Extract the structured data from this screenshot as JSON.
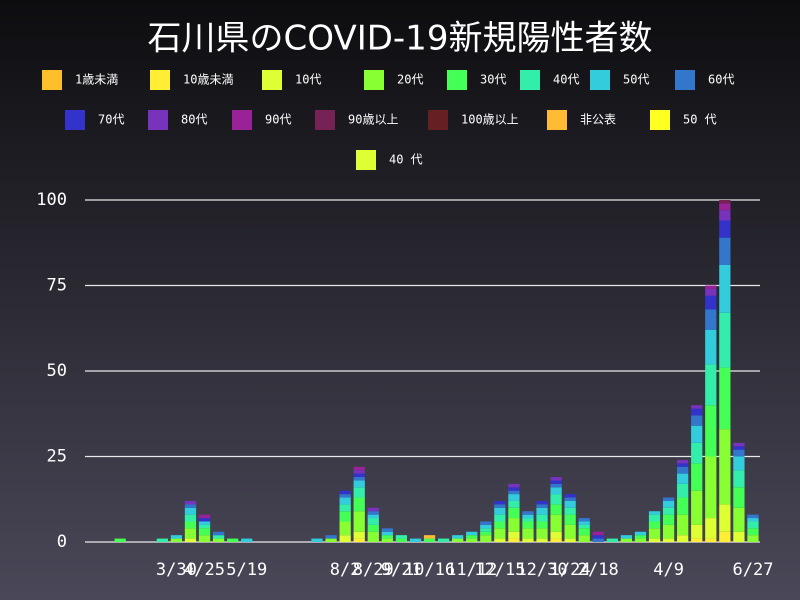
{
  "chart_data": {
    "type": "stacked_bar",
    "title": "石川県のCOVID-19新規陽性者数",
    "categories": [
      null,
      null,
      null,
      null,
      null,
      null,
      "3/30",
      null,
      "4/25",
      null,
      null,
      "5/19",
      null,
      null,
      null,
      null,
      null,
      null,
      "8/2",
      null,
      "8/29",
      null,
      "9/21",
      null,
      "10/16",
      null,
      null,
      "11/12",
      null,
      "12/15",
      null,
      null,
      "12/30",
      null,
      "1/24",
      null,
      "2/18",
      null,
      null,
      null,
      null,
      "4/9",
      null,
      null,
      null,
      null,
      null,
      "6/27"
    ],
    "ylim": [
      0,
      100
    ],
    "yticks": [
      0,
      25,
      50,
      75,
      100
    ],
    "grid": true,
    "series": [
      {
        "name": "1歳未満",
        "color": "#ffbf2a",
        "values": [
          0,
          0,
          0,
          0,
          0,
          0,
          0,
          0,
          0,
          0,
          0,
          0,
          0,
          0,
          0,
          0,
          0,
          0,
          0,
          0,
          0,
          0,
          0,
          0,
          0,
          0,
          0,
          0,
          0,
          0,
          0,
          0,
          0,
          0,
          0,
          0,
          0,
          0,
          0,
          0,
          0,
          0,
          0,
          0,
          0,
          0,
          0,
          0
        ]
      },
      {
        "name": "10歳未満",
        "color": "#ffee33",
        "values": [
          0,
          0,
          0,
          0,
          0,
          0,
          0,
          0,
          0,
          0,
          0,
          0,
          0,
          0,
          0,
          0,
          0,
          0,
          0,
          1,
          0,
          0,
          0,
          0,
          0,
          0,
          0,
          0,
          0,
          0,
          1,
          0,
          0,
          1,
          0,
          0,
          0,
          0,
          0,
          0,
          0,
          0,
          0,
          1,
          1,
          3,
          0,
          0
        ]
      },
      {
        "name": "10代",
        "color": "#ddff33",
        "values": [
          0,
          0,
          0,
          0,
          0,
          0,
          0,
          1,
          0,
          0,
          0,
          0,
          0,
          0,
          0,
          0,
          0,
          0,
          2,
          2,
          0,
          0,
          0,
          0,
          0,
          0,
          0,
          0,
          0,
          1,
          2,
          1,
          1,
          2,
          1,
          0,
          0,
          0,
          0,
          0,
          1,
          1,
          2,
          4,
          6,
          8,
          3,
          0
        ]
      },
      {
        "name": "20代",
        "color": "#88ff33",
        "values": [
          0,
          0,
          0,
          0,
          0,
          0,
          1,
          3,
          2,
          1,
          0,
          0,
          0,
          0,
          0,
          0,
          0,
          1,
          4,
          6,
          3,
          1,
          0,
          0,
          0,
          0,
          1,
          1,
          2,
          3,
          4,
          3,
          3,
          5,
          4,
          2,
          0,
          0,
          1,
          1,
          3,
          4,
          6,
          10,
          18,
          22,
          7,
          2
        ]
      },
      {
        "name": "30代",
        "color": "#44ff55",
        "values": [
          0,
          0,
          1,
          0,
          0,
          0,
          0,
          2,
          2,
          0,
          1,
          0,
          0,
          0,
          0,
          0,
          0,
          0,
          3,
          4,
          2,
          1,
          1,
          0,
          1,
          0,
          0,
          1,
          1,
          2,
          3,
          2,
          2,
          3,
          3,
          2,
          0,
          0,
          0,
          1,
          2,
          3,
          5,
          8,
          15,
          18,
          6,
          2
        ]
      },
      {
        "name": "40代",
        "color": "#33eeaa",
        "values": [
          0,
          0,
          0,
          0,
          0,
          1,
          0,
          2,
          1,
          1,
          0,
          0,
          0,
          0,
          0,
          0,
          0,
          0,
          2,
          3,
          2,
          0,
          1,
          0,
          0,
          1,
          0,
          0,
          1,
          2,
          2,
          1,
          2,
          3,
          2,
          1,
          0,
          1,
          0,
          0,
          2,
          2,
          4,
          6,
          12,
          16,
          5,
          2
        ]
      },
      {
        "name": "50代",
        "color": "#33ccdd",
        "values": [
          0,
          0,
          0,
          0,
          0,
          0,
          1,
          2,
          1,
          0,
          0,
          1,
          0,
          0,
          0,
          0,
          1,
          0,
          2,
          2,
          1,
          1,
          0,
          1,
          0,
          0,
          1,
          1,
          1,
          2,
          2,
          1,
          2,
          2,
          2,
          1,
          0,
          0,
          1,
          1,
          1,
          2,
          3,
          5,
          10,
          14,
          4,
          1
        ]
      },
      {
        "name": "60代",
        "color": "#3377cc",
        "values": [
          0,
          0,
          0,
          0,
          0,
          0,
          0,
          1,
          0,
          1,
          0,
          0,
          0,
          0,
          0,
          0,
          0,
          1,
          1,
          1,
          1,
          1,
          0,
          0,
          0,
          0,
          0,
          0,
          1,
          1,
          1,
          1,
          1,
          1,
          1,
          1,
          1,
          0,
          0,
          0,
          0,
          1,
          2,
          3,
          6,
          8,
          2,
          1
        ]
      },
      {
        "name": "70代",
        "color": "#3333cc",
        "values": [
          0,
          0,
          0,
          0,
          0,
          0,
          0,
          0,
          1,
          0,
          0,
          0,
          0,
          0,
          0,
          0,
          0,
          0,
          1,
          1,
          0,
          0,
          0,
          0,
          0,
          0,
          0,
          0,
          0,
          1,
          1,
          0,
          1,
          1,
          1,
          0,
          1,
          0,
          0,
          0,
          0,
          0,
          1,
          2,
          4,
          5,
          1,
          0
        ]
      },
      {
        "name": "80代",
        "color": "#7733bb",
        "values": [
          0,
          0,
          0,
          0,
          0,
          0,
          0,
          1,
          0,
          0,
          0,
          0,
          0,
          0,
          0,
          0,
          0,
          0,
          0,
          1,
          1,
          0,
          0,
          0,
          0,
          0,
          0,
          0,
          0,
          0,
          1,
          0,
          0,
          1,
          0,
          0,
          0,
          0,
          0,
          0,
          0,
          0,
          1,
          1,
          2,
          3,
          1,
          0
        ]
      },
      {
        "name": "90代",
        "color": "#992299",
        "values": [
          0,
          0,
          0,
          0,
          0,
          0,
          0,
          0,
          1,
          0,
          0,
          0,
          0,
          0,
          0,
          0,
          0,
          0,
          0,
          1,
          0,
          0,
          0,
          0,
          0,
          0,
          0,
          0,
          0,
          0,
          0,
          0,
          0,
          0,
          0,
          0,
          1,
          0,
          0,
          0,
          0,
          0,
          0,
          0,
          1,
          2,
          0,
          0
        ]
      },
      {
        "name": "90歳以上",
        "color": "#772255",
        "values": [
          0,
          0,
          0,
          0,
          0,
          0,
          0,
          0,
          0,
          0,
          0,
          0,
          0,
          0,
          0,
          0,
          0,
          0,
          0,
          0,
          0,
          0,
          0,
          0,
          0,
          0,
          0,
          0,
          0,
          0,
          0,
          0,
          0,
          0,
          0,
          0,
          0,
          0,
          0,
          0,
          0,
          0,
          0,
          0,
          0,
          1,
          0,
          0
        ]
      },
      {
        "name": "100歳以上",
        "color": "#661f22",
        "values": [
          0,
          0,
          0,
          0,
          0,
          0,
          0,
          0,
          0,
          0,
          0,
          0,
          0,
          0,
          0,
          0,
          0,
          0,
          0,
          0,
          0,
          0,
          0,
          0,
          0,
          0,
          0,
          0,
          0,
          0,
          0,
          0,
          0,
          0,
          0,
          0,
          0,
          0,
          0,
          0,
          0,
          0,
          0,
          0,
          0,
          0,
          0,
          0
        ]
      },
      {
        "name": "非公表",
        "color": "#ffbb33",
        "values": [
          0,
          0,
          0,
          0,
          0,
          0,
          0,
          0,
          0,
          0,
          0,
          0,
          0,
          0,
          0,
          0,
          0,
          0,
          0,
          0,
          0,
          0,
          0,
          0,
          1,
          0,
          0,
          0,
          0,
          0,
          0,
          0,
          0,
          0,
          0,
          0,
          0,
          0,
          0,
          0,
          0,
          0,
          0,
          0,
          0,
          0,
          0,
          0
        ]
      },
      {
        "name": "50 代",
        "color": "#ffff22",
        "values": [
          0,
          0,
          0,
          0,
          0,
          0,
          0,
          0,
          0,
          0,
          0,
          0,
          0,
          0,
          0,
          0,
          0,
          0,
          0,
          0,
          0,
          0,
          0,
          0,
          0,
          0,
          0,
          0,
          0,
          0,
          0,
          0,
          0,
          0,
          0,
          0,
          0,
          0,
          0,
          0,
          0,
          0,
          0,
          0,
          0,
          0,
          0,
          0
        ]
      },
      {
        "name": "40 代",
        "color": "#ddff33",
        "values": [
          0,
          0,
          0,
          0,
          0,
          0,
          0,
          0,
          0,
          0,
          0,
          0,
          0,
          0,
          0,
          0,
          0,
          0,
          0,
          0,
          0,
          0,
          0,
          0,
          0,
          0,
          0,
          0,
          0,
          0,
          0,
          0,
          0,
          0,
          0,
          0,
          0,
          0,
          0,
          0,
          0,
          0,
          0,
          0,
          0,
          0,
          0,
          0
        ]
      }
    ]
  }
}
